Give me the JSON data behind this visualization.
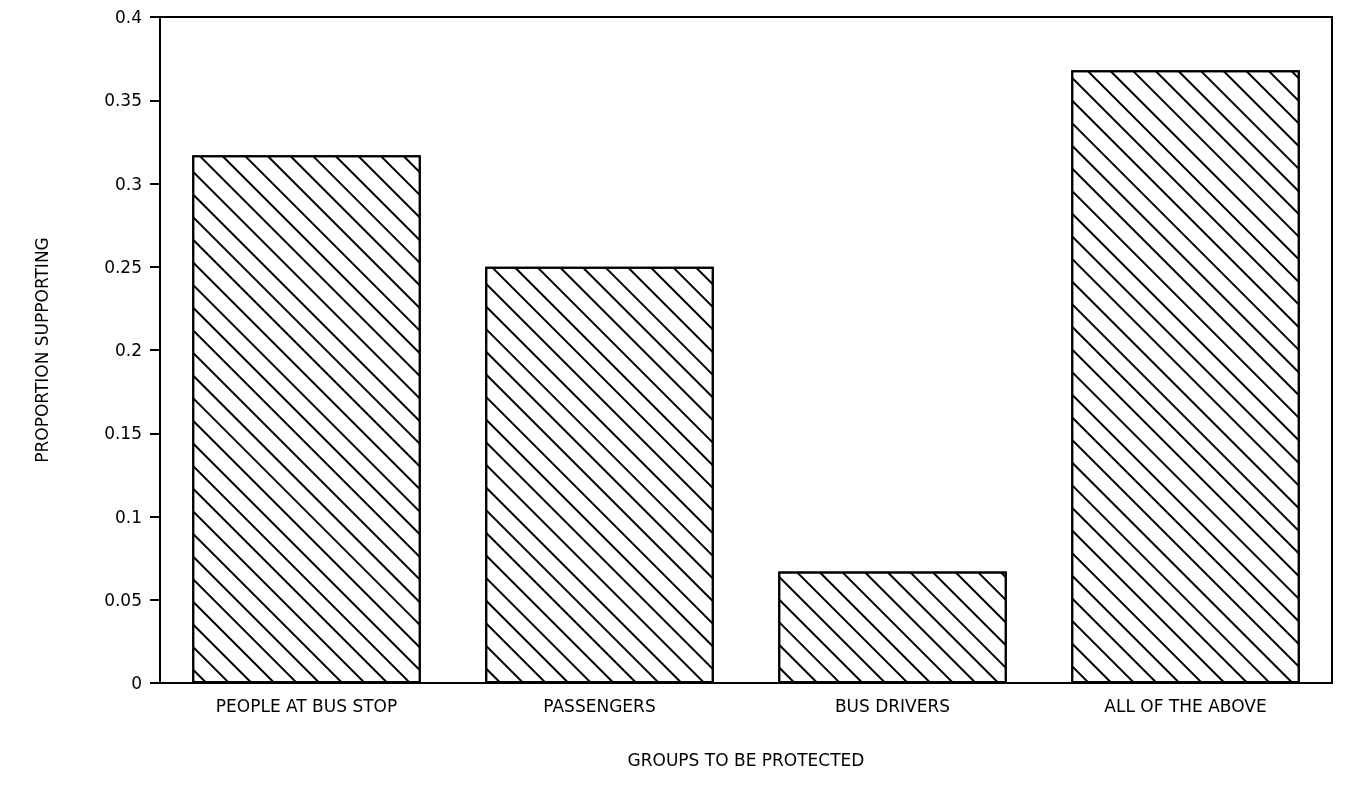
{
  "chart_data": {
    "type": "bar",
    "xlabel": "GROUPS TO BE PROTECTED",
    "ylabel": "PROPORTION SUPPORTING",
    "categories": [
      "PEOPLE AT BUS STOP",
      "PASSENGERS",
      "BUS DRIVERS",
      "ALL OF THE ABOVE"
    ],
    "values": [
      0.317,
      0.25,
      0.067,
      0.368
    ],
    "color": "#000000",
    "ylim": [
      0,
      0.4
    ],
    "yticks": [
      0,
      0.05,
      0.1,
      0.15,
      0.2,
      0.25,
      0.3,
      0.35,
      0.4
    ],
    "grid": false
  }
}
